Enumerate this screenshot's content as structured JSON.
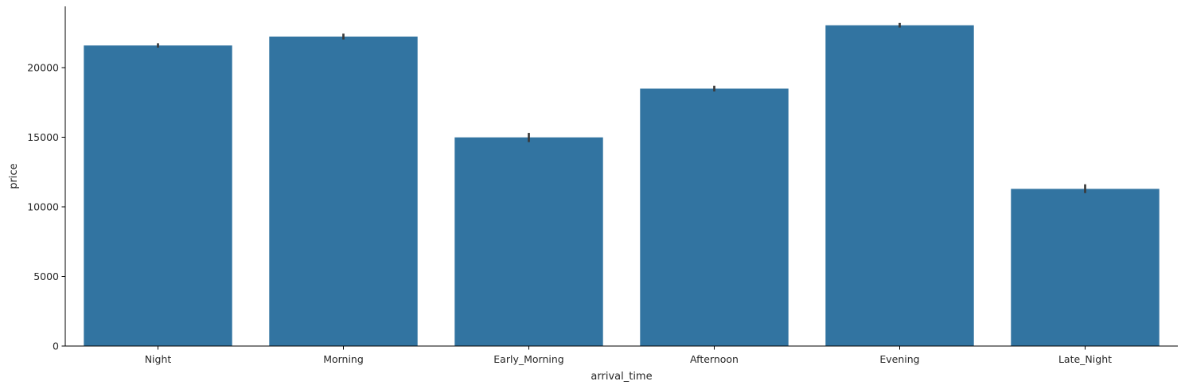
{
  "chart_data": {
    "type": "bar",
    "title": "",
    "xlabel": "arrival_time",
    "ylabel": "price",
    "categories": [
      "Night",
      "Morning",
      "Early_Morning",
      "Afternoon",
      "Evening",
      "Late_Night"
    ],
    "values": [
      21590,
      22230,
      14990,
      18490,
      23040,
      11290
    ],
    "error_low": [
      21440,
      22020,
      14650,
      18290,
      22880,
      10990
    ],
    "error_high": [
      21750,
      22440,
      15310,
      18700,
      23210,
      11620
    ],
    "ylim": [
      0,
      24400
    ],
    "yticks": [
      0,
      5000,
      10000,
      15000,
      20000
    ],
    "grid": false,
    "colors": {
      "bar": "#3274a1",
      "errorbar": "#3a3a3a",
      "axis": "#000000"
    }
  }
}
